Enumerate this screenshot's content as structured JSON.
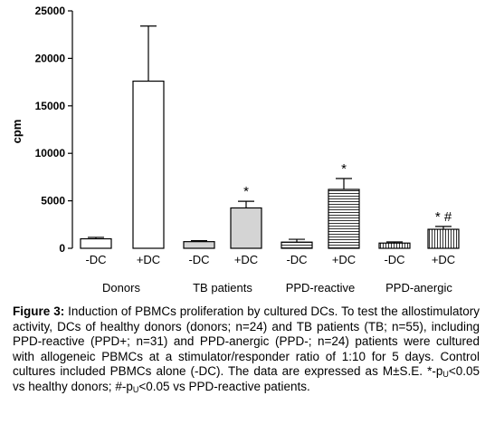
{
  "chart_data": {
    "type": "bar",
    "ylabel": "cpm",
    "ylim": [
      0,
      25000
    ],
    "yticks": [
      0,
      5000,
      10000,
      15000,
      20000,
      25000
    ],
    "yticklabels": [
      "0",
      "5000",
      "10000",
      "15000",
      "20000",
      "25000"
    ],
    "bars": [
      {
        "label": "-DC",
        "group": "Donors",
        "value": 1000,
        "error": 150,
        "fill": "white",
        "annotation": ""
      },
      {
        "label": "+DC",
        "group": "Donors",
        "value": 17600,
        "error": 5800,
        "fill": "white",
        "annotation": ""
      },
      {
        "label": "-DC",
        "group": "TB patients",
        "value": 700,
        "error": 100,
        "fill": "light-gray",
        "annotation": ""
      },
      {
        "label": "+DC",
        "group": "TB patients",
        "value": 4250,
        "error": 700,
        "fill": "light-gray",
        "annotation": "*"
      },
      {
        "label": "-DC",
        "group": "PPD-reactive",
        "value": 650,
        "error": 300,
        "fill": "horizontal-lines",
        "annotation": ""
      },
      {
        "label": "+DC",
        "group": "PPD-reactive",
        "value": 6200,
        "error": 1150,
        "fill": "horizontal-lines",
        "annotation": "*"
      },
      {
        "label": "-DC",
        "group": "PPD-anergic",
        "value": 550,
        "error": 120,
        "fill": "vertical-lines",
        "annotation": ""
      },
      {
        "label": "+DC",
        "group": "PPD-anergic",
        "value": 2000,
        "error": 300,
        "fill": "vertical-lines",
        "annotation": "*  #"
      }
    ],
    "groups": [
      "Donors",
      "TB patients",
      "PPD-reactive",
      "PPD-anergic"
    ],
    "colors": {
      "gray_fill": "#d4d4d4",
      "stroke": "#000000"
    }
  },
  "caption": {
    "label": "Figure 3:",
    "line1": "Induction of PBMCs proliferation by cultured DCs. To test the allostimulatory activity, DCs of healthy donors (donors; n=24) and TB patients (TB; n=55), including PPD-reactive (PPD+; n=31) and PPD-anergic (PPD-; n=24) patients were cultured with allogeneic PBMCs at a stimulator/responder ratio of 1:10 for 5 days. Control cultures included PBMCs alone (-DC). The data are expressed as M±S.E. *-p",
    "sub1": "U",
    "part2": "<0.05 vs healthy donors; #-p",
    "sub2": "U",
    "part3": "<0.05 vs PPD-reactive patients."
  }
}
